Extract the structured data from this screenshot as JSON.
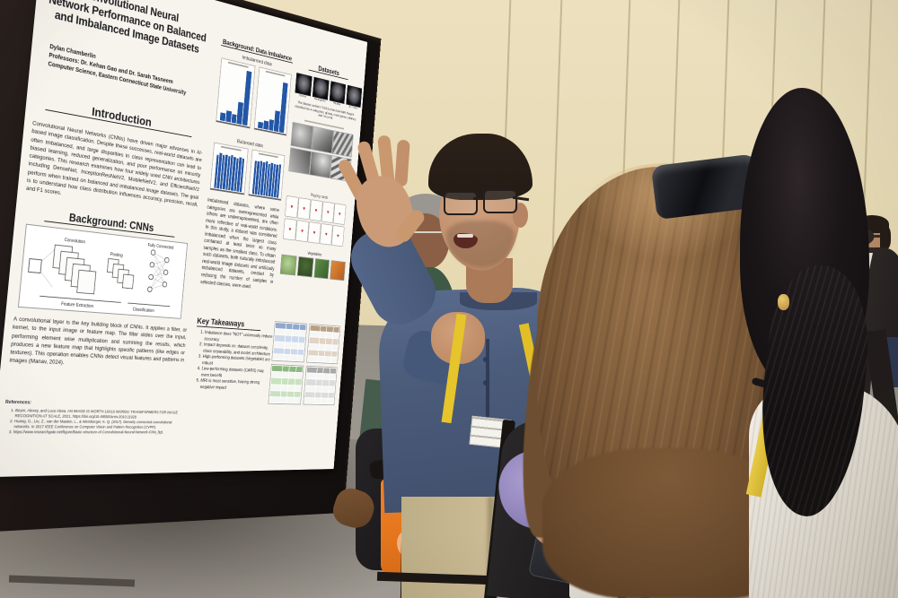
{
  "scene": {
    "colors": {
      "wall": "#e7dab3",
      "floor": "#9b968e",
      "poster_board": "#1b1514",
      "poster_paper": "#f7f4ed",
      "chart_bar_blue": "#2456a6",
      "lanyard_yellow": "#e6c42b",
      "presenter_shirt_blue": "#4b5b7a",
      "khaki_pants": "#c6b48e",
      "orange_bag": "#e1761f",
      "teddy_bear_tan": "#c59a68",
      "purple_fabric": "#9488bd"
    }
  },
  "poster": {
    "title_lines": [
      "Convolutional Neural",
      "Network Performance on Balanced",
      "and Imbalanced Image Datasets"
    ],
    "author": "Dylan Chamberlin",
    "advisors": "Professors: Dr. Kehan Gao and Dr. Sarah Tasneem",
    "affiliation": "Computer Science, Eastern Connecticut State University",
    "intro_heading": "Introduction",
    "intro_text": "Convolutional Neural Networks (CNNs) have driven major advances in AI-based image classification. Despite these successes, real-world datasets are often imbalanced, and large disparities in class representation can lead to biased learning, reduced generalization, and poor performance on minority categories. This research examines how four widely used CNN architectures including DenseNet, InceptionResNetV2, MobileNetV2, and EfficientNetV2 perform when trained on balanced and imbalanced image datasets. The goal is to understand how class distribution influences accuracy, precision, recall, and F1 scores.",
    "cnn_heading": "Background: CNNs",
    "cnn_diagram": {
      "labels": [
        "Convolution",
        "Pooling",
        "Fully Connected",
        "Feature Extraction",
        "Classification"
      ]
    },
    "cnn_text": "A convolutional layer is the key building block of CNNs. It applies a filter, or kernel, to the input image or feature map. The filter slides over the input, performing element wise multiplication and summing the results, which produces a new feature map that highlights specific patterns (like edges or textures). This operation enables CNNs detect visual features and patterns in images (Manav, 2024).",
    "references_heading": "References:",
    "references": [
      "Beyer, Alexey, and Luca Alexa. AN IMAGE IS WORTH 16X16 WORDS: TRANSFORMERS FOR IMAGE RECOGNITION AT SCALE, 2021, https://doi.org/10.48550/arxiv.2010.11929",
      "Huang, G., Liu, Z., van der Maaten, L., & Weinberger, K. Q. (2017). Densely connected convolutional networks. In 2017 IEEE Conference on Computer Vision and Pattern Recognition (CVPR).",
      "https://www.researchgate.net/figure/Basic-structure-of-Convolutional-Neural-Network-CNN_fig1"
    ],
    "imbalance_heading": "Background: Data imbalance",
    "imbalanced_label": "Imbalanced data",
    "balanced_label": "Balanced data",
    "imbalance_text": "Imbalanced datasets, where some categories are overrepresented while others are underrepresented, are often more reflective of real-world conditions. In this study, a dataset was considered imbalanced when the largest class contained at least twice as many samples as the smallest class. To obtain such datasets, both naturally imbalanced real-world image datasets and artificially imbalanced datasets, created by reducing the number of samples in selected classes, were used.",
    "takeaways_heading": "Key Takeaways",
    "takeaways": [
      "Imbalance does \"NOT\" universally reduce accuracy",
      "Impact depends on: dataset complexity, class separability, and model architecture",
      "High-performing datasets (Vegetable) are robust",
      "Low-performing datasets (CARS) may even benefit",
      "MRI is most sensitive, having strong negative impact"
    ],
    "datasets_heading": "Datasets",
    "mri_labels": [
      "Glioma",
      "Meningioma",
      "Pituitary",
      "No Tumor"
    ],
    "mri_caption": "The dataset contains 7023 human brain MRI images classified into 4 categories: glioma, meningioma, pituitary and no tumor.",
    "cards_label": "Playing cards",
    "vegetables_label": "Vegetables",
    "results_tables": {
      "header_colors": [
        "#8fa8cf",
        "#b99f84",
        "#8cb981",
        "#a9a9a9"
      ],
      "tint_colors": [
        "#ccd9ec",
        "#e2d4c5",
        "#c8e2bf",
        "#dcdcdc"
      ],
      "row_labels_partially_legible": [
        "DenseNet",
        "MobileNet",
        "InceptionResNetV2",
        "EfficientNetV2"
      ]
    }
  },
  "chart_data": [
    {
      "type": "bar",
      "title": "Imbalanced data (left chart)",
      "note": "tick labels illegible in photo",
      "relative_heights": [
        0.15,
        0.2,
        0.16,
        0.4,
        1.0
      ],
      "bar_color": "#2456a6"
    },
    {
      "type": "bar",
      "title": "Imbalanced data (right chart)",
      "note": "tick labels illegible in photo",
      "relative_heights": [
        0.12,
        0.16,
        0.2,
        0.38,
        0.95
      ],
      "bar_color": "#2456a6"
    },
    {
      "type": "bar",
      "title": "Balanced data (left chart)",
      "note": "uniform class sizes",
      "relative_heights": [
        0.88,
        0.93,
        0.9,
        0.92,
        0.89,
        0.93,
        0.9,
        0.88,
        0.92,
        0.9
      ],
      "bar_color": "#2456a6"
    },
    {
      "type": "bar",
      "title": "Balanced data (right chart)",
      "note": "uniform class sizes",
      "relative_heights": [
        0.9,
        0.89,
        0.92,
        0.9,
        0.93,
        0.88,
        0.91,
        0.9,
        0.89,
        0.92
      ],
      "bar_color": "#2456a6"
    }
  ]
}
